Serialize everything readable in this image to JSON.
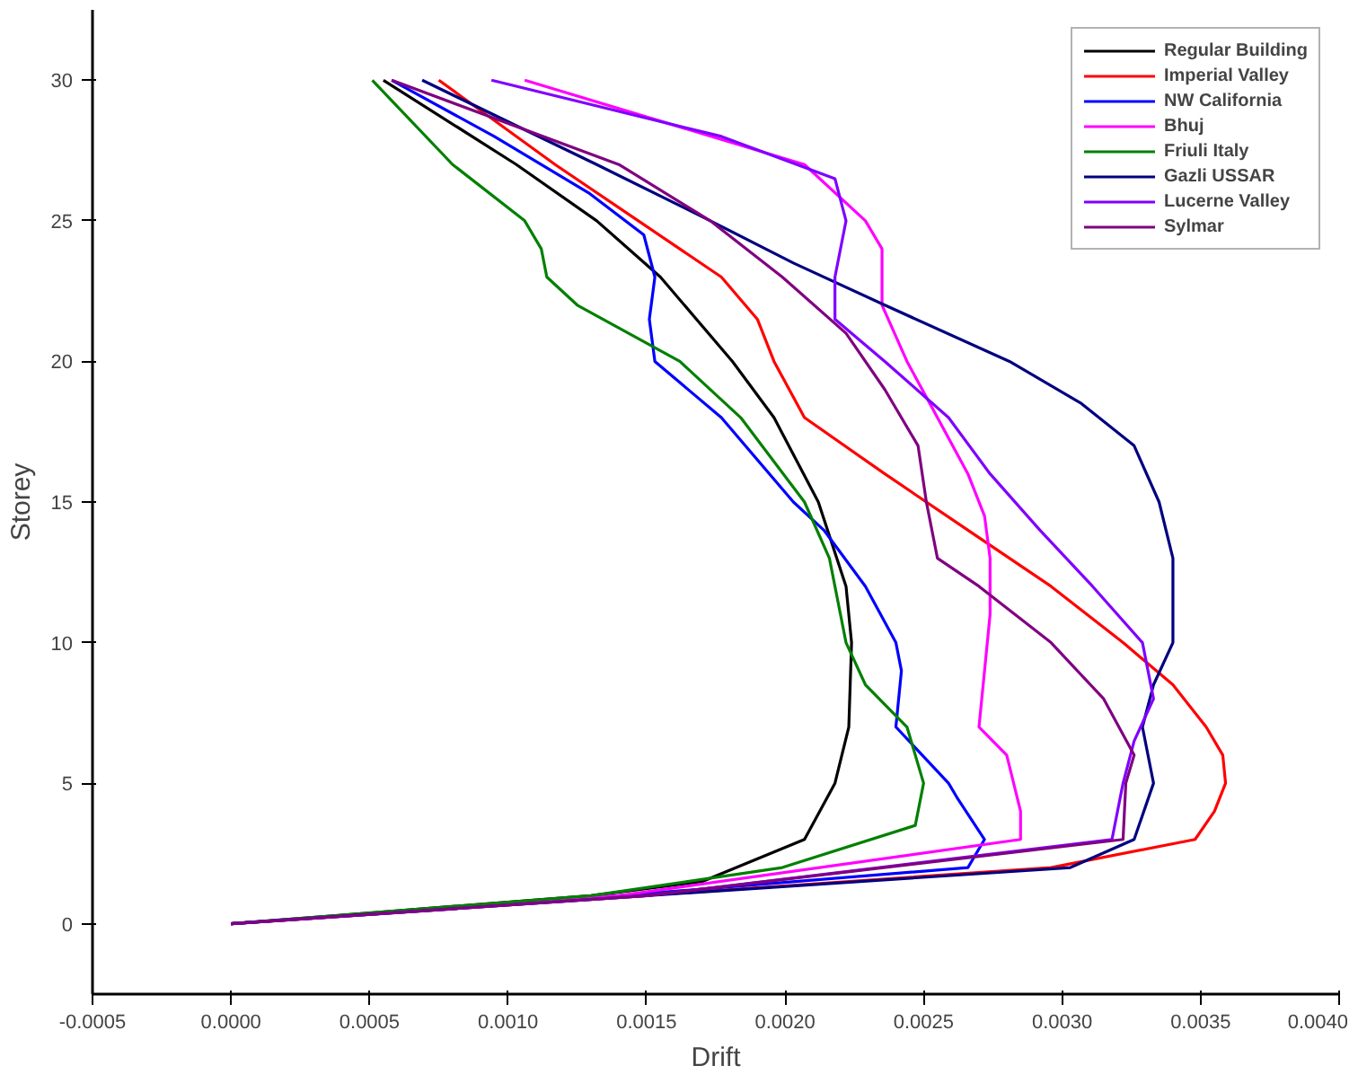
{
  "chart_data": {
    "type": "line",
    "xlabel": "Drift",
    "ylabel": "Storey",
    "xlim": [
      -0.0005,
      0.004
    ],
    "ylim": [
      -2.5,
      32.5
    ],
    "xticks": [
      {
        "value": -0.0005,
        "label": "-0.0005"
      },
      {
        "value": 0,
        "label": "0.0000"
      },
      {
        "value": 0.0005,
        "label": "0.0005"
      },
      {
        "value": 0.001,
        "label": "0.0010"
      },
      {
        "value": 0.0015,
        "label": "0.0015"
      },
      {
        "value": 0.002,
        "label": "0.0020"
      },
      {
        "value": 0.0025,
        "label": "0.0025"
      },
      {
        "value": 0.003,
        "label": "0.0030"
      },
      {
        "value": 0.0035,
        "label": "0.0035"
      },
      {
        "value": 0.004,
        "label": "0.0040"
      }
    ],
    "yticks": [
      0,
      5,
      10,
      15,
      20,
      25,
      30
    ],
    "grid": false,
    "legend": "top right",
    "marker": "none",
    "line_style": "solid",
    "series": [
      {
        "name": "Regular Building",
        "color": "#000000",
        "x": [
          0,
          0.0013,
          0.0017,
          0.00207,
          0.00218,
          0.00223,
          0.00224,
          0.00222,
          0.00212,
          0.00196,
          0.00181,
          0.00155,
          0.00132,
          0.00103,
          0.00055
        ],
        "values": [
          0,
          1,
          1.5,
          3,
          5,
          7,
          10,
          12,
          15,
          18,
          20,
          23,
          25,
          27,
          30
        ]
      },
      {
        "name": "Imperial Valley",
        "color": "#ff0000",
        "x": [
          0,
          0.00296,
          0.00348,
          0.00355,
          0.00359,
          0.00358,
          0.00352,
          0.0034,
          0.00322,
          0.00296,
          0.00266,
          0.00236,
          0.00207,
          0.00196,
          0.0019,
          0.00177,
          0.00147,
          0.00117,
          0.00075
        ],
        "values": [
          0,
          2,
          3,
          4,
          5,
          6,
          7,
          8.5,
          10,
          12,
          14,
          16,
          18,
          20,
          21.5,
          23,
          25,
          27,
          30
        ]
      },
      {
        "name": "NW California",
        "color": "#0000ff",
        "x": [
          0,
          0.0014,
          0.00266,
          0.00272,
          0.00262,
          0.00259,
          0.0024,
          0.00242,
          0.0024,
          0.00229,
          0.00214,
          0.00203,
          0.00177,
          0.00153,
          0.00151,
          0.00153,
          0.00149,
          0.00129,
          0.00095,
          0.00058
        ],
        "values": [
          0,
          1,
          2,
          3,
          4.5,
          5,
          7,
          9,
          10,
          12,
          14,
          15,
          18,
          20,
          21.5,
          23,
          24.5,
          26,
          28,
          30
        ]
      },
      {
        "name": "Bhuj",
        "color": "#ff00ff",
        "x": [
          0,
          0.0014,
          0.00285,
          0.00285,
          0.0028,
          0.0027,
          0.00272,
          0.00274,
          0.00274,
          0.00272,
          0.00266,
          0.00255,
          0.00244,
          0.00235,
          0.00235,
          0.00229,
          0.00207,
          0.00106
        ],
        "values": [
          0,
          1,
          3,
          4,
          6,
          7,
          9,
          11,
          13,
          14.5,
          16,
          18,
          20,
          22,
          24,
          25,
          27,
          30
        ]
      },
      {
        "name": "Friuli Italy",
        "color": "#008000",
        "x": [
          0,
          0.0013,
          0.00199,
          0.00247,
          0.0025,
          0.00244,
          0.00229,
          0.00222,
          0.0022,
          0.00216,
          0.00207,
          0.00184,
          0.00162,
          0.00125,
          0.00114,
          0.00112,
          0.00106,
          0.0008,
          0.00051
        ],
        "values": [
          0,
          1,
          2,
          3.5,
          5,
          7,
          8.5,
          10,
          11,
          13,
          15,
          18,
          20,
          22,
          23,
          24,
          25,
          27,
          30
        ]
      },
      {
        "name": "Gazli USSAR",
        "color": "#000080",
        "x": [
          0,
          0.0015,
          0.00303,
          0.00326,
          0.00333,
          0.00329,
          0.00333,
          0.0034,
          0.0034,
          0.00335,
          0.00326,
          0.00307,
          0.00281,
          0.00236,
          0.00203,
          0.00173,
          0.00132,
          0.00069
        ],
        "values": [
          0,
          1,
          2,
          3,
          5,
          7,
          8.5,
          10,
          13,
          15,
          17,
          18.5,
          20,
          22,
          23.5,
          25,
          27,
          30
        ]
      },
      {
        "name": "Lucerne Valley",
        "color": "#8000ff",
        "x": [
          0,
          0.0015,
          0.00318,
          0.00322,
          0.00326,
          0.00333,
          0.00329,
          0.00311,
          0.00292,
          0.00274,
          0.00259,
          0.00236,
          0.00218,
          0.00218,
          0.00222,
          0.00218,
          0.00177,
          0.00094
        ],
        "values": [
          0,
          1,
          3,
          5,
          6.5,
          8,
          10,
          12,
          14,
          16,
          18,
          20,
          21.5,
          23,
          25,
          26.5,
          28,
          30
        ]
      },
      {
        "name": "Sylmar",
        "color": "#800080",
        "x": [
          0,
          0.0015,
          0.00322,
          0.00323,
          0.00326,
          0.00315,
          0.00296,
          0.0027,
          0.00255,
          0.00251,
          0.00248,
          0.00236,
          0.00222,
          0.00199,
          0.00173,
          0.0014,
          0.00058
        ],
        "values": [
          0,
          1,
          3,
          5,
          6,
          8,
          10,
          12,
          13,
          15,
          17,
          19,
          21,
          23,
          25,
          27,
          30
        ]
      }
    ]
  }
}
